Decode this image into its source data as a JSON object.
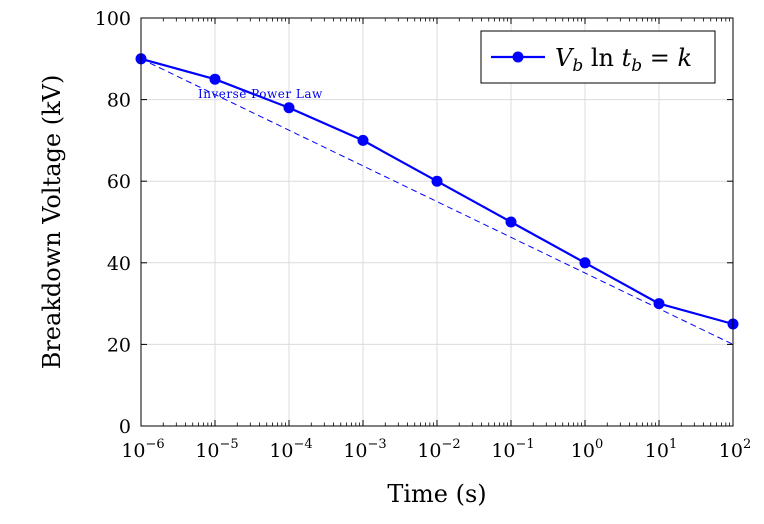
{
  "chart_data": {
    "type": "line",
    "xscale": "log",
    "xlabel": "Time (s)",
    "ylabel": "Breakdown Voltage (kV)",
    "xlim": [
      1e-06,
      100
    ],
    "ylim": [
      0,
      100
    ],
    "grid": true,
    "legend_position": "top-right",
    "x_ticks": [
      {
        "base": "10",
        "exp": "−6"
      },
      {
        "base": "10",
        "exp": "−5"
      },
      {
        "base": "10",
        "exp": "−4"
      },
      {
        "base": "10",
        "exp": "−3"
      },
      {
        "base": "10",
        "exp": "−2"
      },
      {
        "base": "10",
        "exp": "−1"
      },
      {
        "base": "10",
        "exp": "0"
      },
      {
        "base": "10",
        "exp": "1"
      },
      {
        "base": "10",
        "exp": "2"
      }
    ],
    "y_ticks": [
      "0",
      "20",
      "40",
      "60",
      "80",
      "100"
    ],
    "series": [
      {
        "name": "V_b ln t_b = k",
        "color": "#0000ff",
        "marker": "circle",
        "x": [
          1e-06,
          1e-05,
          0.0001,
          0.001,
          0.01,
          0.1,
          1,
          10,
          100
        ],
        "y": [
          90,
          85,
          78,
          70,
          60,
          50,
          40,
          30,
          25
        ]
      }
    ],
    "reference_line": {
      "label": "Inverse Power Law",
      "color": "#0000ff",
      "style": "dashed",
      "x": [
        1e-06,
        100
      ],
      "y": [
        90,
        20
      ]
    }
  }
}
